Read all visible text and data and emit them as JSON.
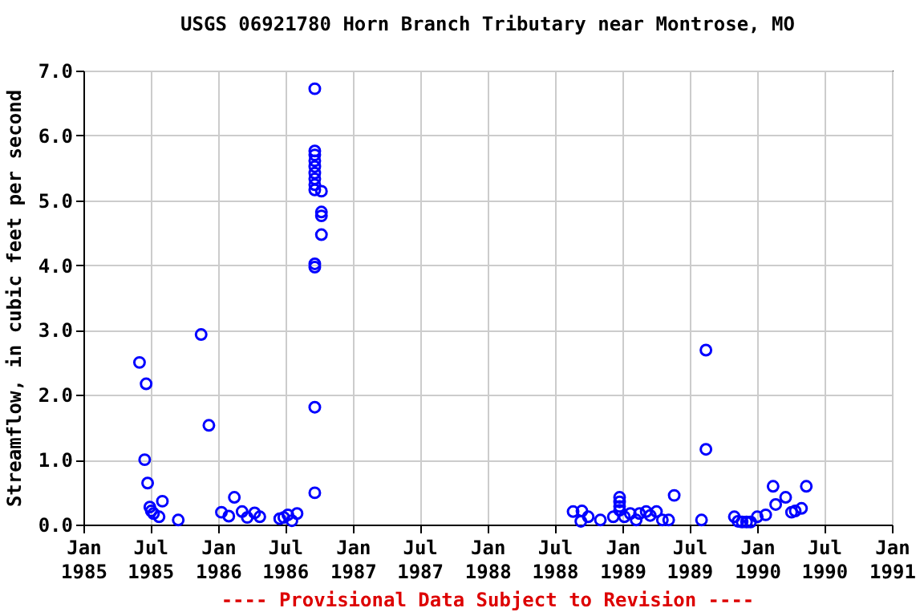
{
  "chart_data": {
    "type": "scatter",
    "title": "USGS 06921780 Horn Branch Tributary near Montrose, MO",
    "ylabel": "Streamflow, in cubic feet per second",
    "annotations": [
      "---- Provisional Data Subject to Revision ----"
    ],
    "x": [
      "1985-06-02",
      "1985-06-20",
      "1985-06-16",
      "1985-06-24",
      "1985-06-30",
      "1985-07-04",
      "1985-07-10",
      "1985-07-25",
      "1985-08-03",
      "1985-09-15",
      "1985-11-16",
      "1985-12-07",
      "1986-01-10",
      "1986-01-30",
      "1986-02-14",
      "1986-03-07",
      "1986-03-21",
      "1986-04-10",
      "1986-04-24",
      "1986-06-17",
      "1986-06-28",
      "1986-07-09",
      "1986-07-20",
      "1986-08-03",
      "1986-09-20",
      "1986-09-20",
      "1986-09-20",
      "1986-09-20",
      "1986-09-20",
      "1986-09-20",
      "1986-09-20",
      "1986-09-20",
      "1986-09-20",
      "1986-09-20",
      "1986-09-20",
      "1986-10-08",
      "1986-10-08",
      "1986-10-08",
      "1986-10-08",
      "1986-09-20",
      "1986-09-20",
      "1988-08-20",
      "1988-09-13",
      "1988-09-10",
      "1988-09-30",
      "1988-11-02",
      "1988-12-07",
      "1988-12-24",
      "1988-12-24",
      "1988-12-24",
      "1988-12-24",
      "1989-01-06",
      "1989-01-22",
      "1989-02-07",
      "1989-02-16",
      "1989-03-06",
      "1989-03-17",
      "1989-04-03",
      "1989-04-19",
      "1989-05-06",
      "1989-05-21",
      "1989-08-03",
      "1989-08-15",
      "1989-08-15",
      "1989-10-31",
      "1989-11-10",
      "1989-11-21",
      "1989-12-03",
      "1989-12-14",
      "1990-01-01",
      "1990-01-24",
      "1990-02-13",
      "1990-02-20",
      "1990-03-19",
      "1990-04-04",
      "1990-04-14",
      "1990-05-01",
      "1990-05-14"
    ],
    "series": [
      {
        "color": "#0000ff",
        "values": [
          2.5,
          2.17,
          1.0,
          0.64,
          0.27,
          0.21,
          0.17,
          0.12,
          0.36,
          0.07,
          2.93,
          1.53,
          0.19,
          0.13,
          0.42,
          0.2,
          0.11,
          0.18,
          0.12,
          0.09,
          0.11,
          0.15,
          0.06,
          0.17,
          1.81,
          0.49,
          6.72,
          5.76,
          5.7,
          5.61,
          5.52,
          5.42,
          5.33,
          5.24,
          5.16,
          5.14,
          4.82,
          4.76,
          4.47,
          4.02,
          3.97,
          0.2,
          0.21,
          0.05,
          0.12,
          0.07,
          0.12,
          0.42,
          0.35,
          0.28,
          0.22,
          0.12,
          0.17,
          0.07,
          0.17,
          0.2,
          0.14,
          0.2,
          0.07,
          0.07,
          0.45,
          0.07,
          2.69,
          1.16,
          0.12,
          0.05,
          0.04,
          0.04,
          0.04,
          0.12,
          0.15,
          0.59,
          0.31,
          0.42,
          0.19,
          0.21,
          0.25,
          0.59
        ]
      }
    ],
    "xlim": [
      "1985-01-01",
      "1991-01-01"
    ],
    "xticks": [
      {
        "value": "1985-01-01",
        "label": "Jan 1985"
      },
      {
        "value": "1985-07-01",
        "label": "Jul 1985"
      },
      {
        "value": "1986-01-01",
        "label": "Jan 1986"
      },
      {
        "value": "1986-07-01",
        "label": "Jul 1986"
      },
      {
        "value": "1987-01-01",
        "label": "Jan 1987"
      },
      {
        "value": "1987-07-01",
        "label": "Jul 1987"
      },
      {
        "value": "1988-01-01",
        "label": "Jan 1988"
      },
      {
        "value": "1988-07-01",
        "label": "Jul 1988"
      },
      {
        "value": "1989-01-01",
        "label": "Jan 1989"
      },
      {
        "value": "1989-07-01",
        "label": "Jul 1989"
      },
      {
        "value": "1990-01-01",
        "label": "Jan 1990"
      },
      {
        "value": "1990-07-01",
        "label": "Jul 1990"
      },
      {
        "value": "1991-01-01",
        "label": "Jan 1991"
      }
    ],
    "ylim": [
      0,
      7
    ],
    "yticks": [
      {
        "value": 0,
        "label": "0.0"
      },
      {
        "value": 1,
        "label": "1.0"
      },
      {
        "value": 2,
        "label": "2.0"
      },
      {
        "value": 3,
        "label": "3.0"
      },
      {
        "value": 4,
        "label": "4.0"
      },
      {
        "value": 5,
        "label": "5.0"
      },
      {
        "value": 6,
        "label": "6.0"
      },
      {
        "value": 7,
        "label": "7.0"
      }
    ],
    "grid": true,
    "marker": "circle"
  }
}
